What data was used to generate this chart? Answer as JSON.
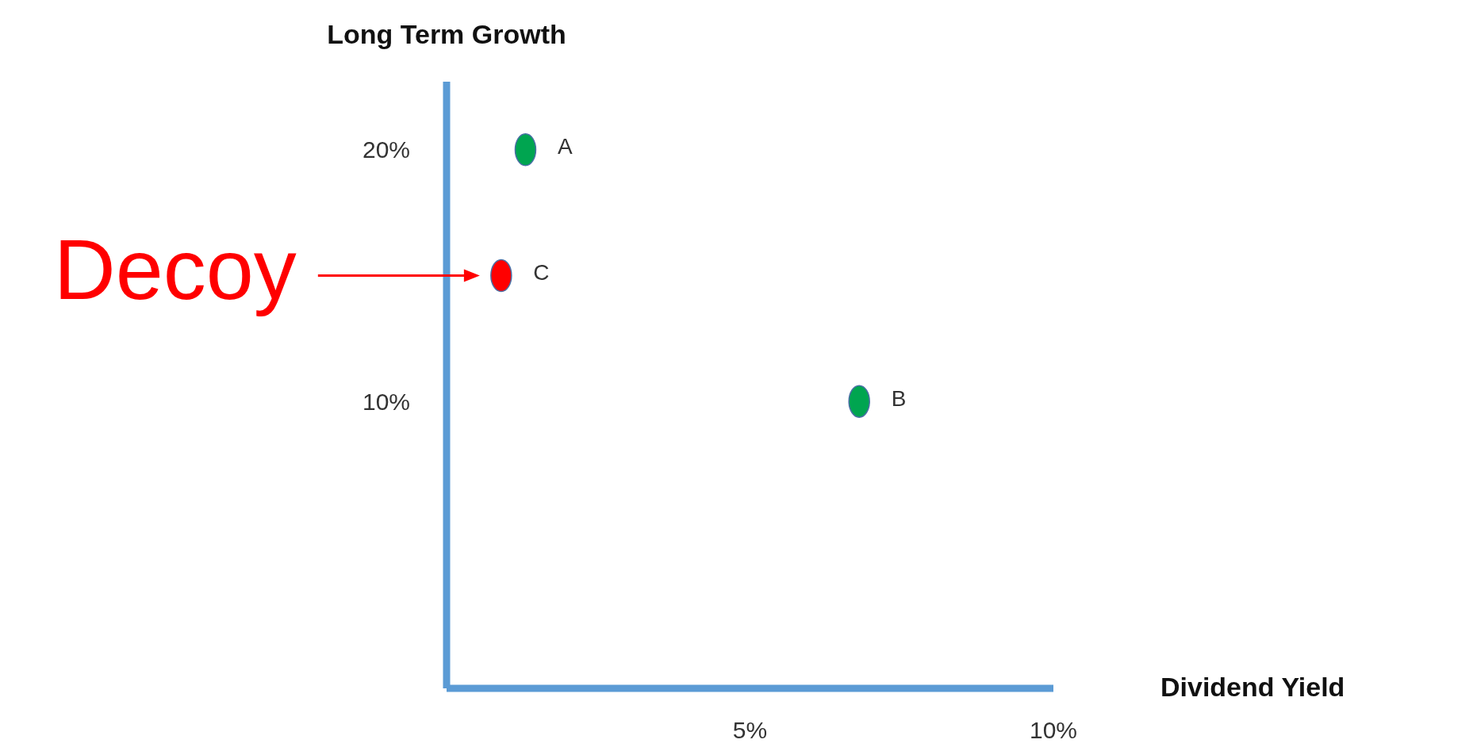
{
  "chart_data": {
    "type": "scatter",
    "xlabel": "Dividend Yield",
    "ylabel": "Long Term Growth",
    "x": [
      1.3,
      6.8,
      0.9
    ],
    "values": [
      20,
      10,
      15
    ],
    "colors": [
      "#00a550",
      "#00a550",
      "#ff0000"
    ],
    "value_labels": [
      "A",
      "B",
      "C"
    ],
    "marker": "circle",
    "xlim": [
      0,
      10
    ],
    "xticks": [
      {
        "value": 5,
        "label": "5%"
      },
      {
        "value": 10,
        "label": "10%"
      }
    ],
    "ylim": [
      -1.4,
      22.7
    ],
    "yticks": [
      {
        "value": 10,
        "label": "10%"
      },
      {
        "value": 20,
        "label": "20%"
      }
    ],
    "annotations": [
      {
        "text": "Decoy",
        "x": 0.9,
        "y": 15
      }
    ]
  }
}
